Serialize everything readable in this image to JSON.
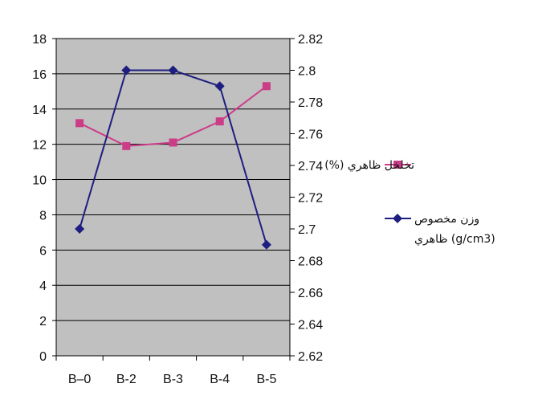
{
  "chart_data": {
    "type": "line",
    "categories": [
      "B–0",
      "B-2",
      "B-3",
      "B-4",
      "B-5"
    ],
    "y_left": {
      "ylim": [
        0,
        18
      ],
      "ticks": [
        "0",
        "2",
        "4",
        "6",
        "8",
        "10",
        "12",
        "14",
        "16",
        "18"
      ]
    },
    "y_right": {
      "ylim": [
        2.62,
        2.82
      ],
      "ticks": [
        "2.62",
        "2.64",
        "2.66",
        "2.68",
        "2.7",
        "2.72",
        "2.74",
        "2.76",
        "2.78",
        "2.8",
        "2.82"
      ]
    },
    "series": [
      {
        "name": "تخلخل ظاهري (%)",
        "axis": "left",
        "color": "#cc3d88",
        "marker": "square",
        "values": [
          13.2,
          11.9,
          12.1,
          13.3,
          15.3
        ]
      },
      {
        "name": "وزن مخصوص ظاهري (g/cm3)",
        "name_lines": [
          "وزن مخصوص",
          "ظاهري (g/cm3)"
        ],
        "axis": "right",
        "color": "#1e1e80",
        "marker": "diamond",
        "values": [
          2.7,
          2.8,
          2.8,
          2.79,
          2.69
        ]
      }
    ],
    "grid": true,
    "plot_background": "#c0c0c0",
    "legend_position": "right"
  }
}
